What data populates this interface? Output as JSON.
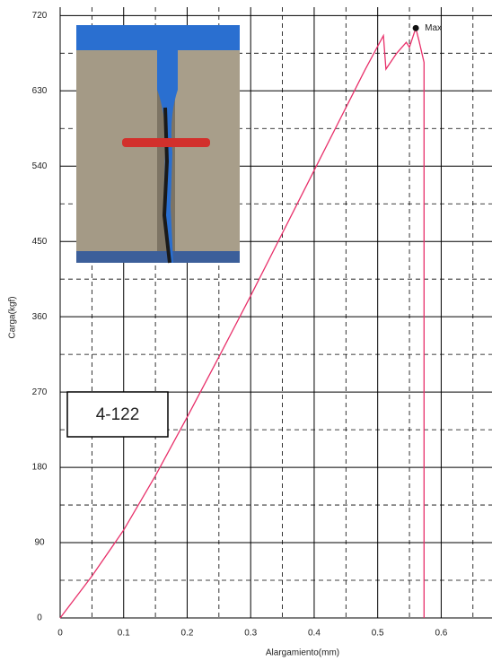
{
  "chart_data": {
    "type": "line",
    "xlabel": "Alargamiento(mm)",
    "ylabel": "Carga(kgf)",
    "annotation": "Max",
    "sample_label": "4-122",
    "xlim": [
      0,
      0.68
    ],
    "ylim": [
      0,
      730
    ],
    "xticks": [
      0,
      0.1,
      0.2,
      0.3,
      0.4,
      0.5,
      0.6
    ],
    "yticks": [
      0,
      90,
      180,
      270,
      360,
      450,
      540,
      630,
      720
    ],
    "xminor": [
      0.05,
      0.15,
      0.25,
      0.35,
      0.45,
      0.55,
      0.65
    ],
    "yminor": [
      45,
      135,
      225,
      315,
      405,
      495,
      585,
      675
    ],
    "grid": true,
    "series": [
      {
        "color": "#e8306a",
        "x": [
          0,
          0.05,
          0.1,
          0.15,
          0.2,
          0.25,
          0.3,
          0.35,
          0.4,
          0.45,
          0.48,
          0.509,
          0.513,
          0.53,
          0.545,
          0.55,
          0.56,
          0.565,
          0.573,
          0.573
        ],
        "values": [
          0,
          50,
          105,
          170,
          240,
          312,
          385,
          460,
          535,
          610,
          655,
          696,
          656,
          675,
          688,
          682,
          705,
          690,
          664,
          0
        ]
      }
    ],
    "max_point": {
      "x": 0.56,
      "y": 705
    }
  }
}
